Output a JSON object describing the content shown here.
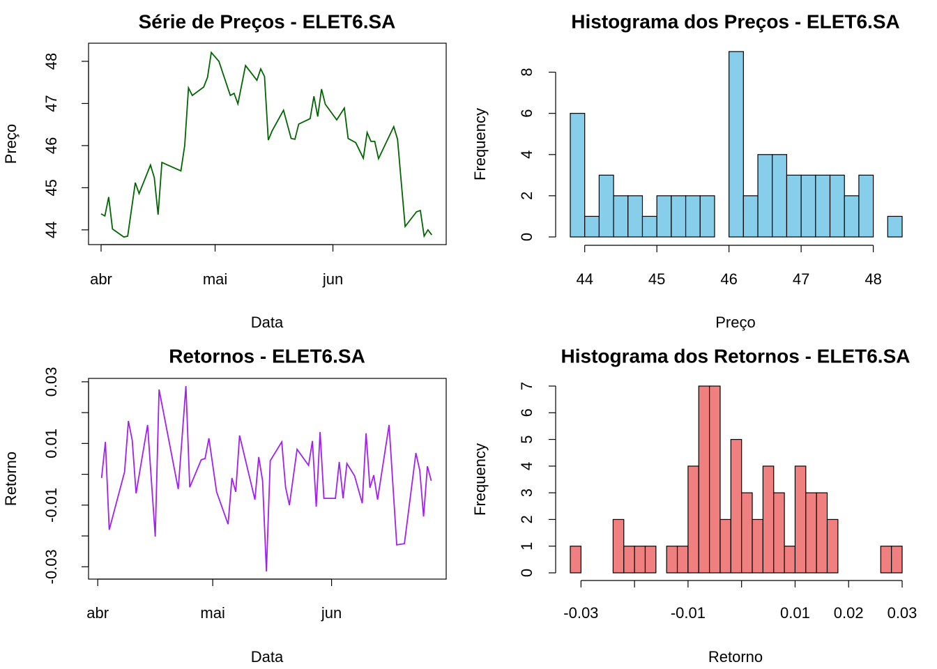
{
  "chart_data": [
    {
      "type": "line",
      "title": "Série de Preços - ELET6.SA",
      "x_label": "Data",
      "y_label": "Preço",
      "color": "#006400",
      "x": [
        0,
        1,
        2,
        3,
        6,
        7,
        9,
        10,
        13,
        14,
        15,
        16,
        21,
        22,
        23,
        24,
        27,
        28,
        29,
        31,
        34,
        35,
        36,
        38,
        41,
        42,
        43,
        44,
        45,
        48,
        50,
        51,
        52,
        55,
        56,
        57,
        58,
        59,
        62,
        64,
        65,
        67,
        69,
        70,
        71,
        72,
        73,
        77,
        78,
        79,
        80,
        83,
        84,
        85,
        86,
        87
      ],
      "values": [
        44.38,
        44.33,
        44.78,
        44.02,
        43.83,
        43.85,
        45.12,
        44.86,
        45.54,
        45.24,
        44.36,
        45.6,
        45.4,
        46.0,
        47.37,
        47.19,
        47.39,
        47.62,
        48.21,
        48.0,
        47.19,
        47.24,
        46.99,
        47.9,
        47.55,
        47.82,
        47.64,
        46.13,
        46.35,
        46.84,
        46.17,
        46.15,
        46.51,
        46.64,
        47.17,
        46.69,
        47.34,
        46.98,
        46.61,
        46.89,
        46.17,
        46.07,
        45.7,
        46.31,
        46.1,
        46.1,
        45.69,
        46.45,
        46.15,
        45.11,
        44.08,
        44.43,
        44.46,
        43.85,
        44.0,
        43.88
      ],
      "xlim": [
        -3.3,
        90.8
      ],
      "ylim": [
        43.65,
        48.43
      ],
      "xticks": [
        {
          "value": 0,
          "label": "abr"
        },
        {
          "value": 30,
          "label": "mai"
        },
        {
          "value": 61,
          "label": "jun"
        }
      ],
      "yticks": [
        44,
        45,
        46,
        47,
        48
      ]
    },
    {
      "type": "histogram",
      "title": "Histograma dos Preços - ELET6.SA",
      "x_label": "Preço",
      "y_label": "Frequency",
      "color": "#87ceeb",
      "bins": [
        43.8,
        44.0,
        44.2,
        44.4,
        44.6,
        44.8,
        45.0,
        45.2,
        45.4,
        45.6,
        45.8,
        46.0,
        46.2,
        46.4,
        46.6,
        46.8,
        47.0,
        47.2,
        47.4,
        47.6,
        47.8,
        48.0,
        48.2,
        48.4
      ],
      "values": [
        6,
        1,
        3,
        2,
        2,
        1,
        2,
        2,
        2,
        2,
        0,
        9,
        2,
        4,
        4,
        3,
        3,
        3,
        3,
        2,
        3,
        0,
        1
      ],
      "xlim": [
        43.8,
        48.4
      ],
      "ylim": [
        0,
        9
      ],
      "xticks": [
        44,
        45,
        46,
        47,
        48
      ],
      "yticks": [
        0,
        2,
        4,
        6,
        8
      ]
    },
    {
      "type": "line",
      "title": "Retornos - ELET6.SA",
      "x_label": "Data",
      "y_label": "Retorno",
      "color": "#a020f0",
      "x": [
        1,
        2,
        3,
        7,
        8,
        9,
        10,
        13,
        15,
        16,
        21,
        23,
        24,
        27,
        28,
        29,
        31,
        34,
        35,
        36,
        37,
        41,
        42,
        43,
        44,
        45,
        48,
        49,
        50,
        52,
        55,
        56,
        57,
        58,
        59,
        62,
        63,
        64,
        65,
        67,
        69,
        70,
        71,
        72,
        73,
        76,
        78,
        80,
        83,
        84,
        85,
        86,
        87
      ],
      "values": [
        -0.0012,
        0.0105,
        -0.018,
        0.0008,
        0.0173,
        0.011,
        -0.0062,
        0.016,
        -0.0202,
        0.0275,
        -0.0048,
        0.0286,
        -0.0042,
        0.0047,
        0.0051,
        0.0117,
        -0.0057,
        -0.0162,
        -0.0012,
        -0.0057,
        0.0126,
        -0.0082,
        0.0056,
        -0.0021,
        -0.0315,
        0.0044,
        0.0105,
        -0.0042,
        -0.01,
        0.0081,
        0.0029,
        0.0108,
        -0.0105,
        0.0137,
        -0.0078,
        -0.0078,
        0.004,
        -0.0078,
        0.0035,
        -0.0005,
        -0.0094,
        0.0133,
        -0.0044,
        -0.0003,
        -0.0082,
        0.016,
        -0.0229,
        -0.0225,
        0.0069,
        0.0013,
        -0.0137,
        0.0026,
        -0.0021
      ],
      "xlim": [
        -2.4,
        90.9
      ],
      "ylim": [
        -0.034,
        0.0311
      ],
      "xticks": [
        {
          "value": 0,
          "label": "abr"
        },
        {
          "value": 30,
          "label": "mai"
        },
        {
          "value": 61,
          "label": "jun"
        }
      ],
      "yticks": [
        -0.03,
        {
          "value": -0.02,
          "label": null
        },
        -0.01,
        {
          "value": 0,
          "label": null
        },
        0.01,
        {
          "value": 0.02,
          "label": null
        },
        0.03
      ]
    },
    {
      "type": "histogram",
      "title": "Histograma dos Retornos - ELET6.SA",
      "x_label": "Retorno",
      "y_label": "Frequency",
      "color": "#f08080",
      "bins": [
        -0.032,
        -0.03,
        -0.028,
        -0.026,
        -0.024,
        -0.022,
        -0.02,
        -0.018,
        -0.016,
        -0.014,
        -0.012,
        -0.01,
        -0.008,
        -0.006,
        -0.004,
        -0.002,
        0,
        0.002,
        0.004,
        0.006,
        0.008,
        0.01,
        0.012,
        0.014,
        0.016,
        0.018,
        0.02,
        0.022,
        0.024,
        0.026,
        0.028,
        0.03
      ],
      "values": [
        1,
        0,
        0,
        0,
        2,
        1,
        1,
        1,
        0,
        1,
        1,
        4,
        7,
        7,
        2,
        5,
        3,
        2,
        4,
        3,
        1,
        4,
        3,
        3,
        2,
        0,
        0,
        0,
        0,
        1,
        1
      ],
      "xlim": [
        -0.032,
        0.03
      ],
      "ylim": [
        0,
        7
      ],
      "xticks": [
        -0.03,
        {
          "value": -0.02,
          "label": null
        },
        -0.01,
        {
          "value": 0,
          "label": null
        },
        0.01,
        0.02,
        0.03
      ],
      "yticks": [
        0,
        1,
        2,
        3,
        4,
        5,
        6,
        7
      ]
    }
  ]
}
